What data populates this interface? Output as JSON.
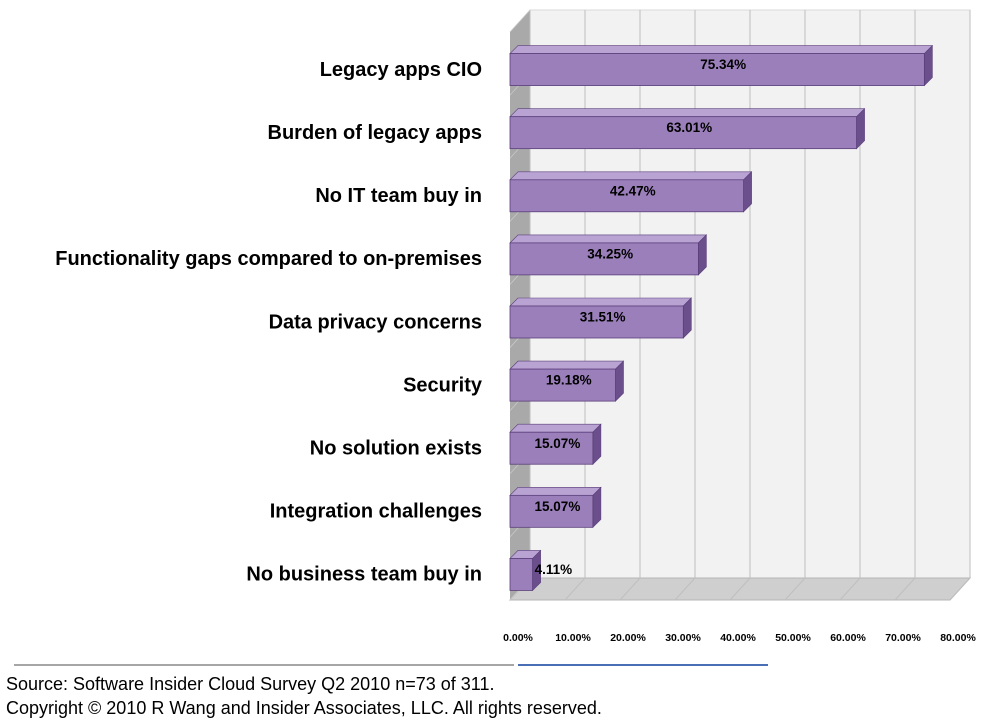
{
  "chart_data": {
    "type": "bar",
    "orientation": "horizontal",
    "style": "3d",
    "categories": [
      "Legacy apps CIO",
      "Burden of legacy apps",
      "No IT team buy in",
      "Functionality gaps compared to on-premises",
      "Data privacy concerns",
      "Security",
      "No solution exists",
      "Integration challenges",
      "No business team buy in"
    ],
    "values": [
      75.34,
      63.01,
      42.47,
      34.25,
      31.51,
      19.18,
      15.07,
      15.07,
      4.11
    ],
    "value_labels": [
      "75.34%",
      "63.01%",
      "42.47%",
      "34.25%",
      "31.51%",
      "19.18%",
      "15.07%",
      "15.07%",
      "4.11%"
    ],
    "xlim": [
      0,
      80
    ],
    "x_ticks": [
      0,
      10,
      20,
      30,
      40,
      50,
      60,
      70,
      80
    ],
    "x_tick_labels": [
      "0.00%",
      "10.00%",
      "20.00%",
      "30.00%",
      "40.00%",
      "50.00%",
      "60.00%",
      "70.00%",
      "80.00%"
    ],
    "grid": true,
    "title": "",
    "xlabel": "",
    "ylabel": "",
    "colors": {
      "bar_front": "#9b7fba",
      "bar_top": "#b9a3d3",
      "bar_side": "#6a4f8c",
      "bar_outline": "#5a3f7a",
      "plot_wall": "#f2f2f2",
      "side_wall": "#a9a9a9",
      "floor": "#cfcfcf",
      "gridline": "#bfbfbf"
    }
  },
  "footer": {
    "source": "Source: Software Insider Cloud Survey Q2 2010 n=73 of 311.",
    "copyright": "Copyright © 2010 R Wang and Insider Associates, LLC. All rights reserved."
  },
  "colors": {
    "divider_gray": "#a6a6a6",
    "divider_blue": "#4a6fb5"
  }
}
